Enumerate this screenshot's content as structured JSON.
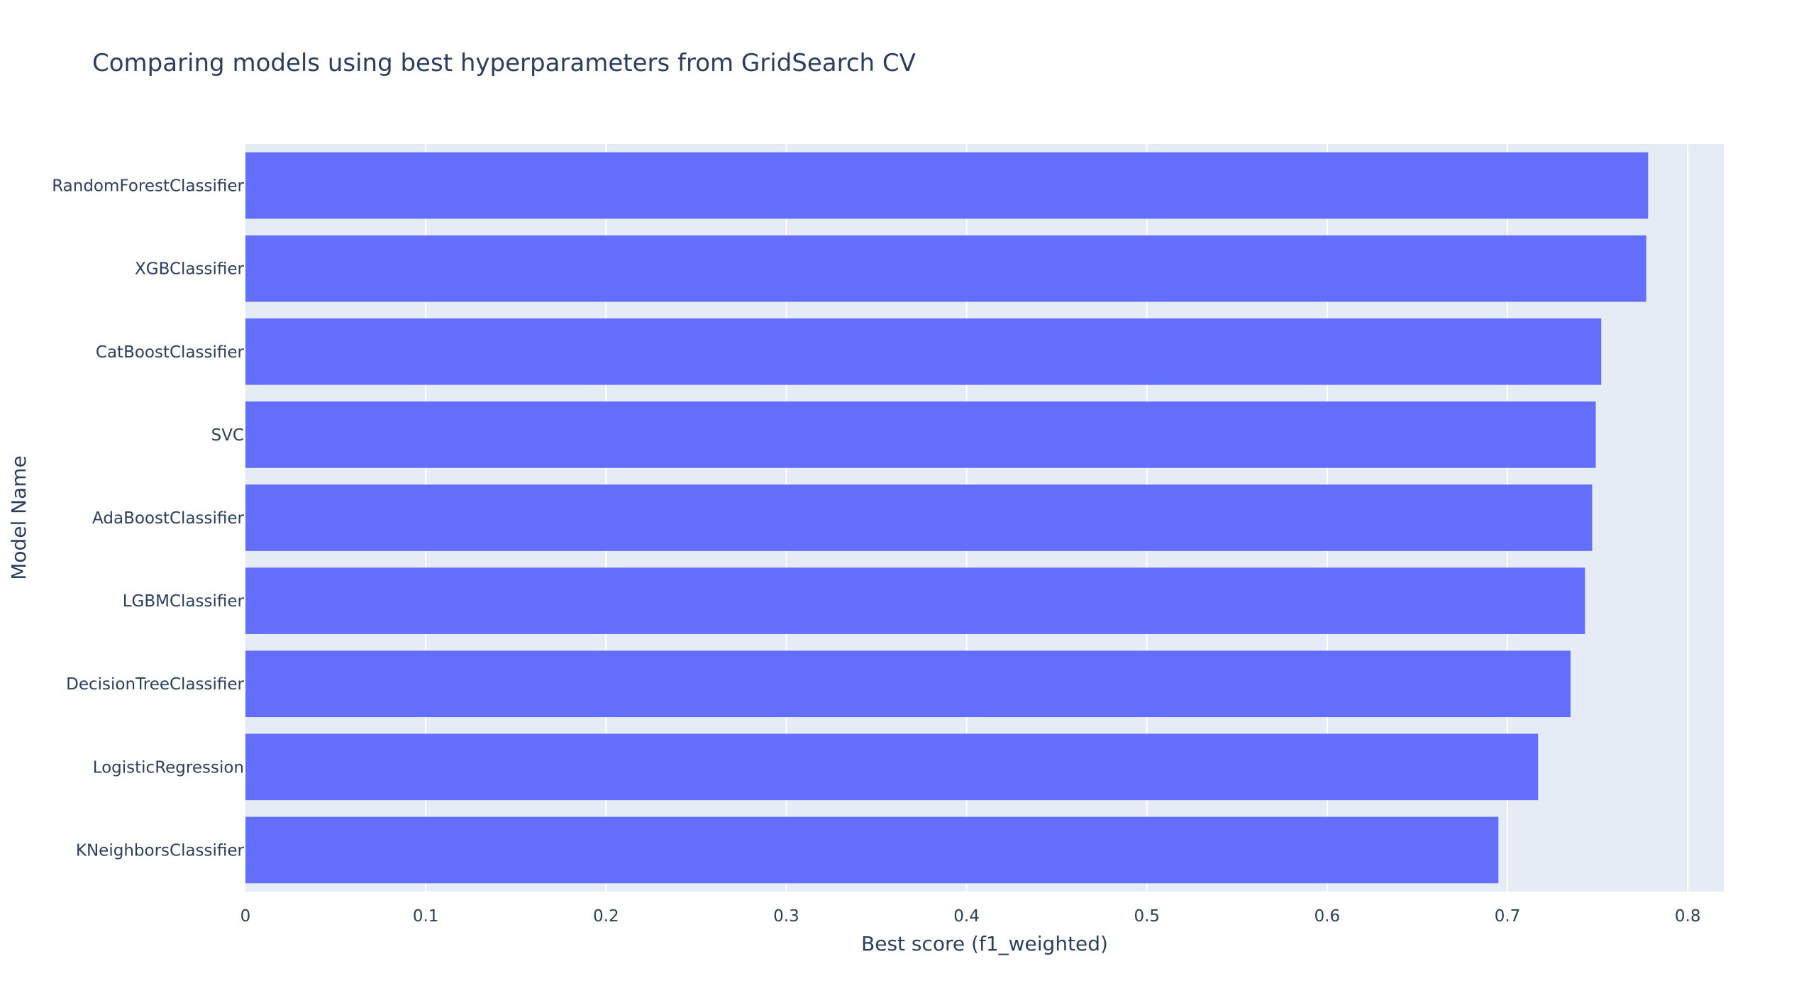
{
  "chart_data": {
    "type": "bar",
    "orientation": "horizontal",
    "title": "Comparing models using best hyperparameters from GridSearch CV",
    "xlabel": "Best score (f1_weighted)",
    "ylabel": "Model Name",
    "xlim": [
      0,
      0.82
    ],
    "xticks": [
      0,
      0.1,
      0.2,
      0.3,
      0.4,
      0.5,
      0.6,
      0.7,
      0.8
    ],
    "xtick_labels": [
      "0",
      "0.1",
      "0.2",
      "0.3",
      "0.4",
      "0.5",
      "0.6",
      "0.7",
      "0.8"
    ],
    "grid": true,
    "bar_color": "#636efa",
    "background_color": "#e5ecf6",
    "categories": [
      "RandomForestClassifier",
      "XGBClassifier",
      "CatBoostClassifier",
      "SVC",
      "AdaBoostClassifier",
      "LGBMClassifier",
      "DecisionTreeClassifier",
      "LogisticRegression",
      "KNeighborsClassifier"
    ],
    "values": [
      0.778,
      0.777,
      0.752,
      0.749,
      0.747,
      0.743,
      0.735,
      0.717,
      0.695
    ]
  }
}
